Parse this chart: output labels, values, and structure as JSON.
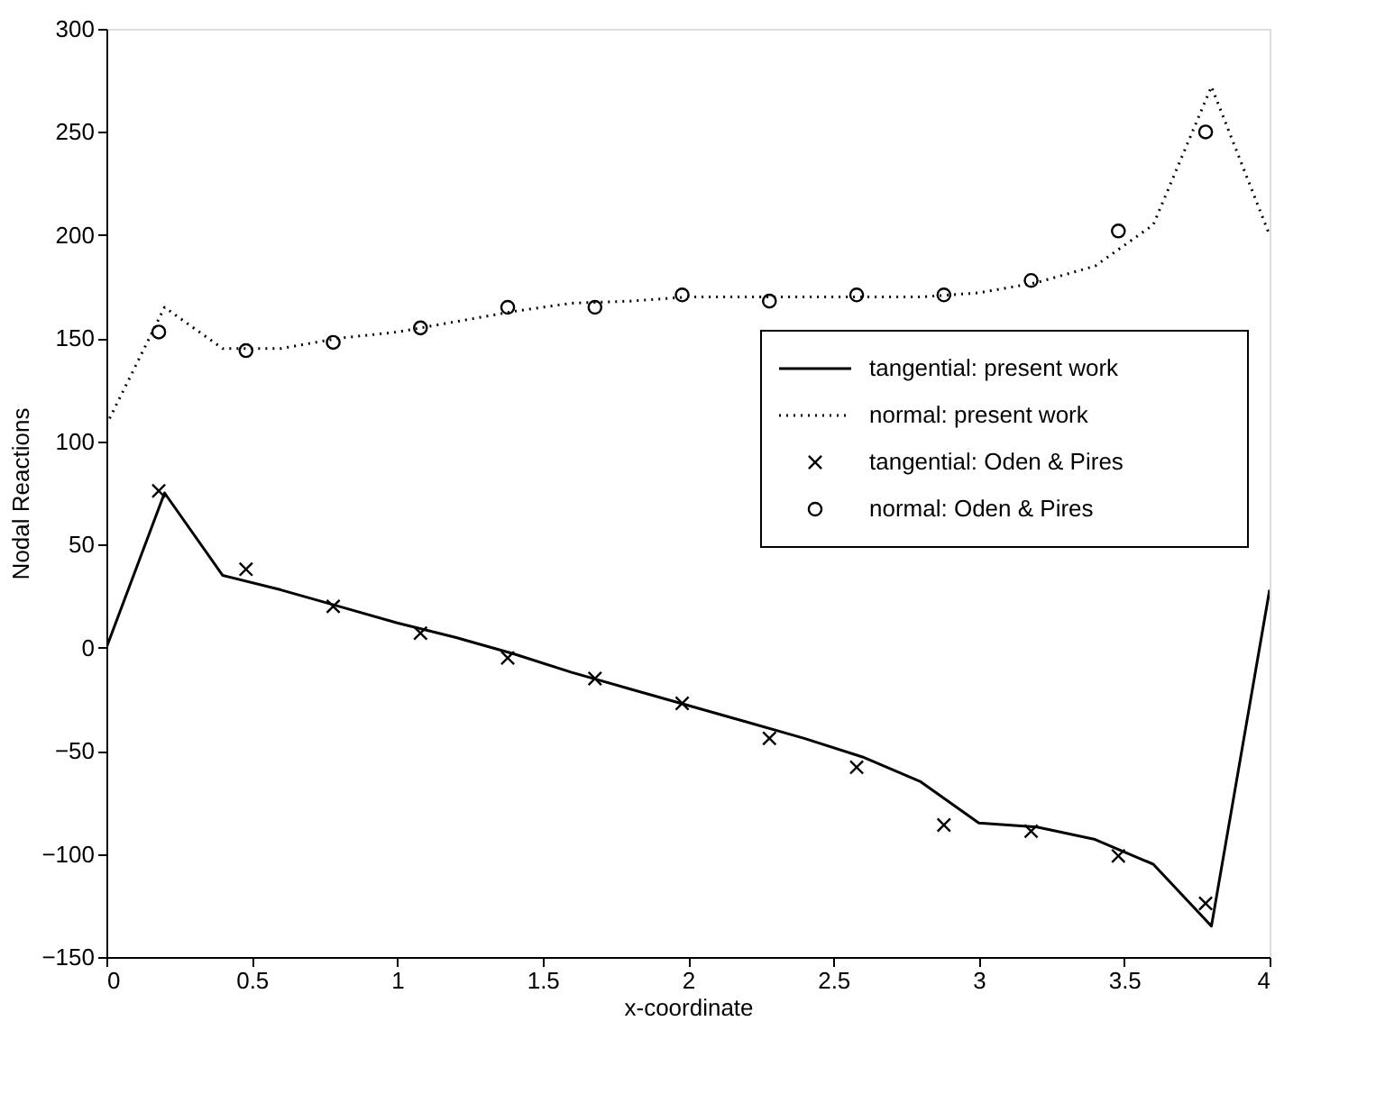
{
  "chart_data": {
    "type": "line",
    "xlabel": "x-coordinate",
    "ylabel": "Nodal Reactions",
    "xlim": [
      0,
      4
    ],
    "ylim": [
      -150,
      300
    ],
    "xticks": [
      0,
      0.5,
      1,
      1.5,
      2,
      2.5,
      3,
      3.5,
      4
    ],
    "yticks": [
      -150,
      -100,
      -50,
      0,
      50,
      100,
      150,
      200,
      250,
      300
    ],
    "grid": false,
    "legend": "right",
    "series": [
      {
        "name": "tangential: present work",
        "line_style": "solid",
        "color": "#000000",
        "x": [
          0,
          0.2,
          0.4,
          0.6,
          0.8,
          1.0,
          1.2,
          1.4,
          1.6,
          1.8,
          2.0,
          2.2,
          2.4,
          2.6,
          2.8,
          3.0,
          3.2,
          3.4,
          3.6,
          3.8,
          4.0
        ],
        "values": [
          0,
          75,
          35,
          28,
          20,
          12,
          5,
          -3,
          -12,
          -20,
          -28,
          -36,
          -44,
          -53,
          -65,
          -85,
          -87,
          -93,
          -105,
          -135,
          28
        ]
      },
      {
        "name": "normal: present work",
        "line_style": "dotted",
        "color": "#000000",
        "x": [
          0,
          0.2,
          0.4,
          0.6,
          0.8,
          1.0,
          1.2,
          1.4,
          1.6,
          1.8,
          2.0,
          2.2,
          2.4,
          2.6,
          2.8,
          3.0,
          3.2,
          3.4,
          3.6,
          3.8,
          4.0
        ],
        "values": [
          108,
          165,
          145,
          145,
          150,
          153,
          158,
          163,
          167,
          168,
          170,
          170,
          170,
          170,
          170,
          172,
          177,
          185,
          205,
          272,
          200
        ]
      },
      {
        "name": "tangential: Oden & Pires",
        "type": "scatter",
        "marker": "cross",
        "color": "#000000",
        "x": [
          0.18,
          0.48,
          0.78,
          1.08,
          1.38,
          1.68,
          1.98,
          2.28,
          2.58,
          2.88,
          3.18,
          3.48,
          3.78
        ],
        "values": [
          76,
          38,
          20,
          7,
          -5,
          -15,
          -27,
          -44,
          -58,
          -86,
          -89,
          -101,
          -124
        ]
      },
      {
        "name": "normal: Oden & Pires",
        "type": "scatter",
        "marker": "circle",
        "color": "#000000",
        "x": [
          0.18,
          0.48,
          0.78,
          1.08,
          1.38,
          1.68,
          1.98,
          2.28,
          2.58,
          2.88,
          3.18,
          3.48,
          3.78
        ],
        "values": [
          153,
          144,
          148,
          155,
          165,
          165,
          171,
          168,
          171,
          171,
          178,
          202,
          250
        ]
      }
    ]
  }
}
